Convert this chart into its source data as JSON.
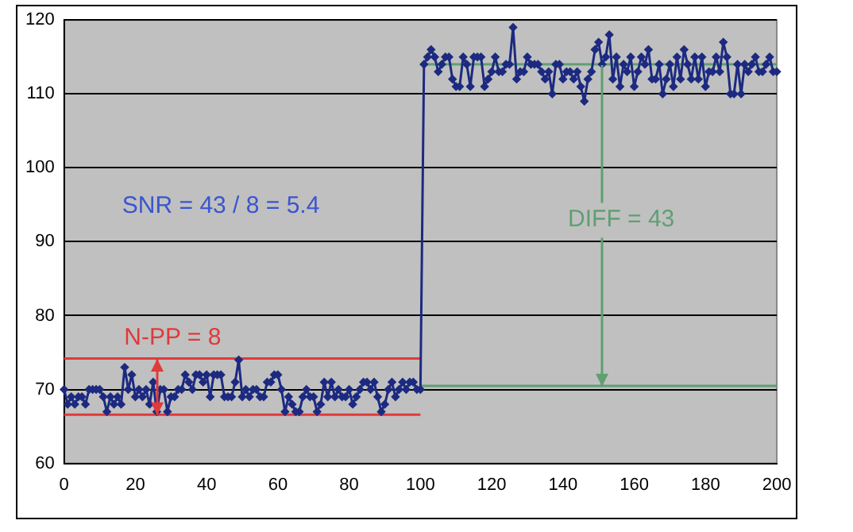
{
  "chart_data": {
    "type": "line",
    "xlim": [
      0,
      200
    ],
    "xticks": [
      0,
      20,
      40,
      60,
      80,
      100,
      120,
      140,
      160,
      180,
      200
    ],
    "ylim": [
      60,
      120
    ],
    "yticks": [
      60,
      70,
      80,
      90,
      100,
      110,
      120
    ],
    "grid": "y",
    "legend": false,
    "marker": "diamond",
    "line_style": "solid",
    "annotations": [
      {
        "text": "N-PP = 8",
        "x": 26,
        "y": 74.2
      },
      "SNR = 43 / 8 = 5.4",
      {
        "text": "DIFF = 43",
        "x": 151,
        "y": 70.5
      }
    ],
    "series": [
      {
        "color": "#1c2a80",
        "x": [
          0,
          1,
          2,
          3,
          4,
          5,
          6,
          7,
          8,
          9,
          10,
          11,
          12,
          13,
          14,
          15,
          16,
          17,
          18,
          19,
          20,
          21,
          22,
          23,
          24,
          25,
          26,
          27,
          28,
          29,
          30,
          31,
          32,
          33,
          34,
          35,
          36,
          37,
          38,
          39,
          40,
          41,
          42,
          43,
          44,
          45,
          46,
          47,
          48,
          49,
          50,
          51,
          52,
          53,
          54,
          55,
          56,
          57,
          58,
          59,
          60,
          61,
          62,
          63,
          64,
          65,
          66,
          67,
          68,
          69,
          70,
          71,
          72,
          73,
          74,
          75,
          76,
          77,
          78,
          79,
          80,
          81,
          82,
          83,
          84,
          85,
          86,
          87,
          88,
          89,
          90,
          91,
          92,
          93,
          94,
          95,
          96,
          97,
          98,
          99,
          100,
          101,
          102,
          103,
          104,
          105,
          106,
          107,
          108,
          109,
          110,
          111,
          112,
          113,
          114,
          115,
          116,
          117,
          118,
          119,
          120,
          121,
          122,
          123,
          124,
          125,
          126,
          127,
          128,
          129,
          130,
          131,
          132,
          133,
          134,
          135,
          136,
          137,
          138,
          139,
          140,
          141,
          142,
          143,
          144,
          145,
          146,
          147,
          148,
          149,
          150,
          151,
          152,
          153,
          154,
          155,
          156,
          157,
          158,
          159,
          160,
          161,
          162,
          163,
          164,
          165,
          166,
          167,
          168,
          169,
          170,
          171,
          172,
          173,
          174,
          175,
          176,
          177,
          178,
          179,
          180,
          181,
          182,
          183,
          184,
          185,
          186,
          187,
          188,
          189,
          190,
          191,
          192,
          193,
          194,
          195,
          196,
          197,
          198,
          199,
          200
        ],
        "values": [
          70,
          68,
          69,
          68,
          69,
          69,
          68,
          70,
          70,
          70,
          70,
          69,
          67,
          69,
          68,
          69,
          68,
          73,
          70,
          72,
          69,
          70,
          69,
          70,
          68,
          71,
          67,
          70,
          70,
          67,
          69,
          69,
          70,
          70,
          72,
          71,
          70,
          72,
          72,
          71,
          72,
          69,
          72,
          72,
          72,
          69,
          69,
          69,
          71,
          74,
          69,
          70,
          69,
          70,
          70,
          69,
          69,
          71,
          71,
          72,
          72,
          70,
          67,
          69,
          68,
          67,
          67,
          69,
          70,
          69,
          69,
          67,
          68,
          71,
          69,
          71,
          69,
          70,
          69,
          69,
          70,
          68,
          69,
          70,
          71,
          71,
          70,
          71,
          69,
          67,
          68,
          70,
          71,
          69,
          70,
          71,
          70,
          71,
          71,
          70,
          70,
          114,
          115,
          116,
          115,
          113,
          114,
          115,
          115,
          112,
          111,
          111,
          115,
          114,
          111,
          115,
          115,
          115,
          111,
          112,
          113,
          115,
          113,
          113,
          114,
          114,
          119,
          112,
          113,
          113,
          115,
          114,
          114,
          114,
          113,
          112,
          113,
          110,
          114,
          114,
          112,
          113,
          113,
          112,
          113,
          111,
          109,
          112,
          113,
          116,
          117,
          114,
          115,
          118,
          112,
          115,
          111,
          114,
          113,
          115,
          111,
          113,
          115,
          114,
          116,
          112,
          112,
          114,
          110,
          112,
          114,
          111,
          115,
          112,
          116,
          114,
          112,
          115,
          112,
          115,
          111,
          113,
          113,
          115,
          113,
          117,
          115,
          110,
          110,
          114,
          110,
          114,
          113,
          114,
          115,
          113,
          113,
          114,
          115,
          113,
          113
        ]
      },
      {
        "type": "line",
        "marker": "none",
        "color": "#e03a3a",
        "x": [
          0,
          100
        ],
        "values": [
          74.2,
          74.2
        ]
      },
      {
        "type": "line",
        "marker": "none",
        "color": "#e03a3a",
        "x": [
          0,
          100
        ],
        "values": [
          66.6,
          66.6
        ]
      },
      {
        "type": "line",
        "marker": "none",
        "color": "#5f9f72",
        "x": [
          100,
          200
        ],
        "values": [
          114,
          114
        ]
      },
      {
        "type": "line",
        "marker": "none",
        "color": "#5f9f72",
        "x": [
          100,
          200
        ],
        "values": [
          70.5,
          70.5
        ]
      }
    ]
  }
}
